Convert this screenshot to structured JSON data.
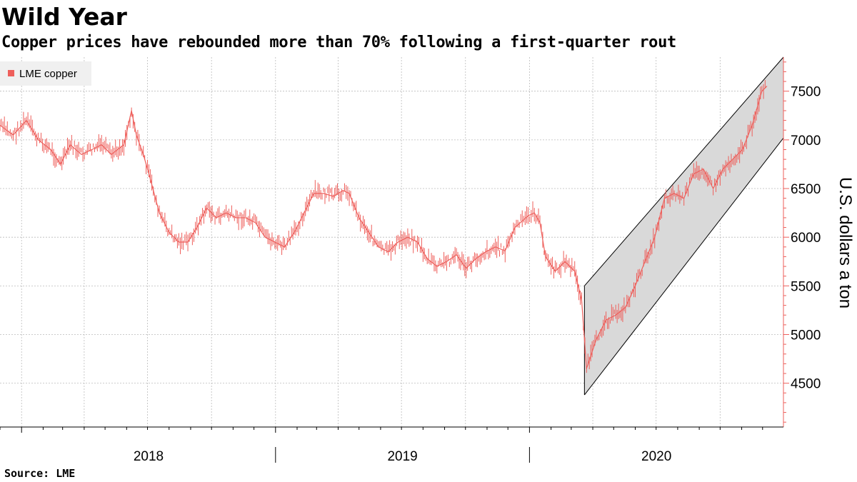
{
  "title": "Wild Year",
  "subtitle": "Copper prices have rebounded more than 70% following a first-quarter rout",
  "source": "Source: LME",
  "chart_data": {
    "type": "line",
    "title": "Wild Year",
    "subtitle": "Copper prices have rebounded more than 70% following a first-quarter rout",
    "ylabel": "U.S. dollars a ton",
    "xlabel": "",
    "ylim": [
      4050,
      7850
    ],
    "yticks": [
      4500,
      5000,
      5500,
      6000,
      6500,
      7000,
      7500
    ],
    "ytick_labels": [
      "4500",
      "5000",
      "5500",
      "6000",
      "6500",
      "7000",
      "7500"
    ],
    "x_period_labels": [
      "2018",
      "2019",
      "2020"
    ],
    "x_unit": "month",
    "xlim": [
      "2017-12-01",
      "2020-12-31"
    ],
    "grid": true,
    "legend_position": "top-left",
    "y_axis_side": "right",
    "colors": {
      "series": "#ee5f5b",
      "channel_fill": "#d9d9d9",
      "channel_line": "#000000",
      "grid": "#bbbbbb",
      "axis": "#ee5f5b",
      "legend_bg": "#f0f0f0"
    },
    "series": [
      {
        "name": "LME copper",
        "x": [
          "2017-12-01",
          "2017-12-20",
          "2018-01-08",
          "2018-01-25",
          "2018-02-12",
          "2018-02-26",
          "2018-03-12",
          "2018-03-28",
          "2018-04-12",
          "2018-04-26",
          "2018-05-10",
          "2018-05-28",
          "2018-06-08",
          "2018-06-15",
          "2018-06-25",
          "2018-07-05",
          "2018-07-18",
          "2018-08-01",
          "2018-08-15",
          "2018-08-28",
          "2018-09-10",
          "2018-09-24",
          "2018-10-08",
          "2018-10-22",
          "2018-11-05",
          "2018-11-19",
          "2018-12-03",
          "2018-12-17",
          "2018-12-31",
          "2019-01-14",
          "2019-01-28",
          "2019-02-11",
          "2019-02-25",
          "2019-03-11",
          "2019-03-25",
          "2019-04-08",
          "2019-04-17",
          "2019-05-01",
          "2019-05-15",
          "2019-05-29",
          "2019-06-12",
          "2019-06-26",
          "2019-07-10",
          "2019-07-24",
          "2019-08-07",
          "2019-08-21",
          "2019-09-04",
          "2019-09-18",
          "2019-10-02",
          "2019-10-16",
          "2019-10-30",
          "2019-11-13",
          "2019-11-27",
          "2019-12-11",
          "2019-12-30",
          "2020-01-08",
          "2020-01-16",
          "2020-01-24",
          "2020-02-07",
          "2020-02-21",
          "2020-03-06",
          "2020-03-16",
          "2020-03-23",
          "2020-04-06",
          "2020-04-20",
          "2020-05-04",
          "2020-05-18",
          "2020-06-01",
          "2020-06-15",
          "2020-06-29",
          "2020-07-13",
          "2020-07-27",
          "2020-08-10",
          "2020-08-24",
          "2020-09-07",
          "2020-09-21",
          "2020-10-05",
          "2020-10-19",
          "2020-11-02",
          "2020-11-16",
          "2020-11-30",
          "2020-12-07"
        ],
        "values": [
          7150,
          7050,
          7200,
          7000,
          6900,
          6750,
          6950,
          6850,
          6900,
          6950,
          6850,
          6950,
          7300,
          7050,
          6850,
          6600,
          6250,
          6050,
          5950,
          5950,
          6100,
          6300,
          6200,
          6250,
          6200,
          6200,
          6150,
          6000,
          5950,
          5900,
          6050,
          6250,
          6450,
          6450,
          6420,
          6480,
          6450,
          6200,
          6050,
          5900,
          5850,
          5950,
          6000,
          5950,
          5780,
          5700,
          5750,
          5820,
          5680,
          5780,
          5850,
          5900,
          5860,
          6100,
          6220,
          6250,
          6150,
          5800,
          5650,
          5750,
          5650,
          5350,
          4650,
          4950,
          5150,
          5200,
          5280,
          5500,
          5750,
          6000,
          6400,
          6450,
          6400,
          6650,
          6700,
          6500,
          6700,
          6800,
          6900,
          7150,
          7500,
          7550
        ]
      }
    ],
    "channel": {
      "upper": {
        "start_x": "2020-03-20",
        "start_y": 5500,
        "end_x": "2020-12-31",
        "end_y": 7850
      },
      "lower": {
        "start_x": "2020-03-20",
        "start_y": 4380,
        "end_x": "2020-12-31",
        "end_y": 7020
      }
    }
  }
}
